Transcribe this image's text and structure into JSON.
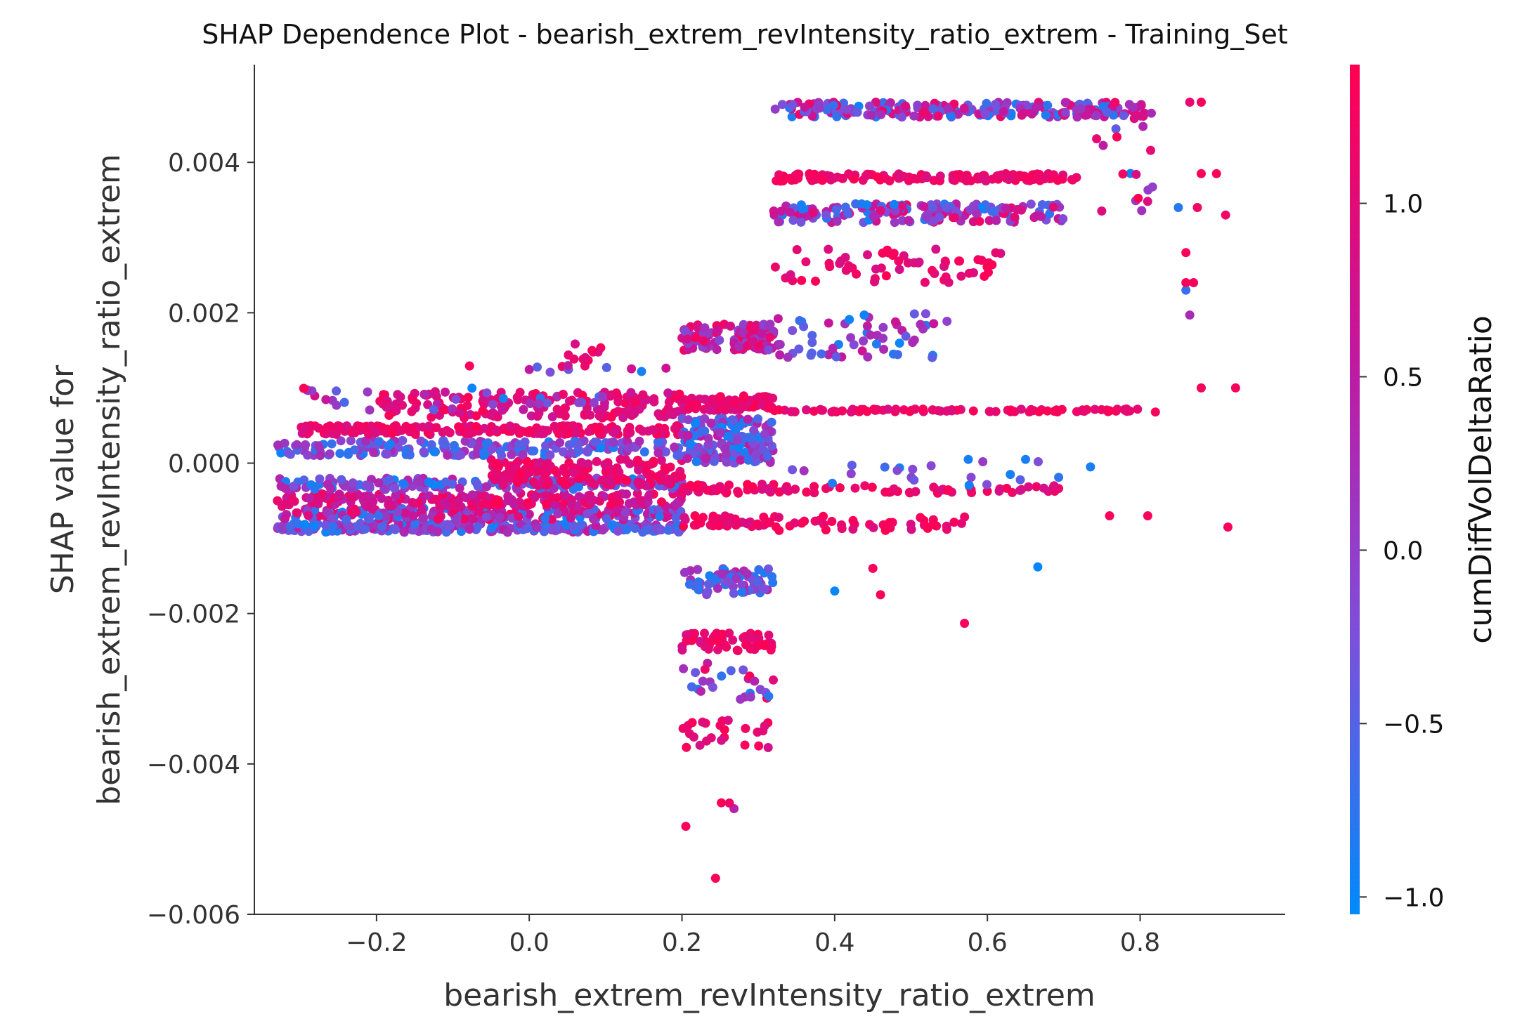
{
  "chart_data": {
    "type": "scatter",
    "title": "SHAP Dependence Plot - bearish_extrem_revIntensity_ratio_extrem - Training_Set",
    "xlabel": "bearish_extrem_revIntensity_ratio_extrem",
    "ylabel_lines": [
      "SHAP value for",
      "bearish_extrem_revIntensity_ratio_extrem"
    ],
    "xlim": [
      -0.36,
      0.99
    ],
    "ylim": [
      -0.006,
      0.0053
    ],
    "xticks": [
      -0.2,
      0.0,
      0.2,
      0.4,
      0.6,
      0.8
    ],
    "xtick_labels": [
      "−0.2",
      "0.0",
      "0.2",
      "0.4",
      "0.6",
      "0.8"
    ],
    "yticks": [
      0.004,
      0.002,
      0.0,
      -0.002,
      -0.004,
      -0.006
    ],
    "ytick_labels": [
      "0.004",
      "0.002",
      "0.000",
      "−0.002",
      "−0.004",
      "−0.006"
    ],
    "colorbar": {
      "label": "cumDiffVolDeltaRatio",
      "range": [
        -1.05,
        1.4
      ],
      "ticks": [
        1.0,
        0.5,
        0.0,
        -0.5,
        -1.0
      ],
      "tick_labels": [
        "1.0",
        "0.5",
        "0.0",
        "−0.5",
        "−1.0"
      ],
      "colormap": [
        "#008afb",
        "#7d4fdb",
        "#c3179f",
        "#ff0052"
      ]
    },
    "grid": false,
    "point_clusters": [
      {
        "x": [
          -0.33,
          0.2
        ],
        "y": [
          -0.00092,
          -0.0008
        ],
        "n": 260,
        "c": [
          -1.0,
          0.6
        ]
      },
      {
        "x": [
          -0.33,
          0.2
        ],
        "y": [
          -0.00075,
          -0.0006
        ],
        "n": 220,
        "c": [
          -1.0,
          1.3
        ]
      },
      {
        "x": [
          -0.33,
          0.2
        ],
        "y": [
          -0.00058,
          -0.0004
        ],
        "n": 200,
        "c": [
          0.4,
          1.4
        ]
      },
      {
        "x": [
          -0.33,
          0.2
        ],
        "y": [
          -0.00035,
          -0.0002
        ],
        "n": 160,
        "c": [
          -1.0,
          0.5
        ]
      },
      {
        "x": [
          -0.05,
          0.2
        ],
        "y": [
          -0.0003,
          5e-05
        ],
        "n": 160,
        "c": [
          0.8,
          1.4
        ]
      },
      {
        "x": [
          -0.33,
          0.2
        ],
        "y": [
          0.0001,
          0.0003
        ],
        "n": 200,
        "c": [
          -1.0,
          0.4
        ]
      },
      {
        "x": [
          -0.3,
          0.2
        ],
        "y": [
          0.00038,
          0.0005
        ],
        "n": 200,
        "c": [
          0.8,
          1.4
        ]
      },
      {
        "x": [
          -0.2,
          0.2
        ],
        "y": [
          0.0006,
          0.00095
        ],
        "n": 160,
        "c": [
          0.6,
          1.4
        ]
      },
      {
        "x": [
          -0.33,
          0.1
        ],
        "y": [
          0.0007,
          0.001
        ],
        "n": 40,
        "c": [
          -1.0,
          1.4
        ]
      },
      {
        "x": [
          0.04,
          0.1
        ],
        "y": [
          0.0012,
          0.0016
        ],
        "n": 12,
        "c": [
          0.8,
          1.4
        ]
      },
      {
        "x": [
          -0.1,
          0.18
        ],
        "y": [
          0.0012,
          0.0013
        ],
        "n": 10,
        "c": [
          -1.0,
          1.4
        ]
      },
      {
        "x": [
          0.2,
          0.32
        ],
        "y": [
          -0.00085,
          -0.0007
        ],
        "n": 40,
        "c": [
          0.8,
          1.4
        ]
      },
      {
        "x": [
          0.2,
          0.32
        ],
        "y": [
          -0.0004,
          -0.00028
        ],
        "n": 40,
        "c": [
          0.8,
          1.4
        ]
      },
      {
        "x": [
          0.2,
          0.32
        ],
        "y": [
          0.0,
          0.0003
        ],
        "n": 100,
        "c": [
          -1.0,
          0.6
        ]
      },
      {
        "x": [
          0.2,
          0.32
        ],
        "y": [
          0.0003,
          0.0006
        ],
        "n": 80,
        "c": [
          -1.0,
          0.6
        ]
      },
      {
        "x": [
          0.2,
          0.32
        ],
        "y": [
          0.0007,
          0.0009
        ],
        "n": 80,
        "c": [
          0.8,
          1.4
        ]
      },
      {
        "x": [
          0.2,
          0.32
        ],
        "y": [
          0.0015,
          0.00185
        ],
        "n": 110,
        "c": [
          -0.2,
          1.3
        ]
      },
      {
        "x": [
          0.2,
          0.32
        ],
        "y": [
          -0.00175,
          -0.0014
        ],
        "n": 70,
        "c": [
          -1.0,
          0.5
        ]
      },
      {
        "x": [
          0.2,
          0.32
        ],
        "y": [
          -0.0025,
          -0.00225
        ],
        "n": 60,
        "c": [
          0.8,
          1.4
        ]
      },
      {
        "x": [
          0.2,
          0.32
        ],
        "y": [
          -0.00315,
          -0.00265
        ],
        "n": 25,
        "c": [
          -1.0,
          1.4
        ]
      },
      {
        "x": [
          0.2,
          0.32
        ],
        "y": [
          -0.0038,
          -0.0034
        ],
        "n": 25,
        "c": [
          0.8,
          1.4
        ]
      },
      {
        "x": [
          0.24,
          0.27
        ],
        "y": [
          -0.00495,
          -0.0045
        ],
        "n": 3,
        "c": [
          0.2,
          1.4
        ]
      },
      {
        "x": [
          0.32,
          0.82
        ],
        "y": [
          0.0046,
          0.0048
        ],
        "n": 220,
        "c": [
          -1.0,
          1.2
        ]
      },
      {
        "x": [
          0.32,
          0.72
        ],
        "y": [
          0.00375,
          0.00385
        ],
        "n": 140,
        "c": [
          0.9,
          1.4
        ]
      },
      {
        "x": [
          0.32,
          0.7
        ],
        "y": [
          0.0032,
          0.00345
        ],
        "n": 180,
        "c": [
          -1.0,
          1.2
        ]
      },
      {
        "x": [
          0.32,
          0.62
        ],
        "y": [
          0.0024,
          0.00285
        ],
        "n": 60,
        "c": [
          0.8,
          1.4
        ]
      },
      {
        "x": [
          0.32,
          0.55
        ],
        "y": [
          0.0014,
          0.002
        ],
        "n": 60,
        "c": [
          -1.0,
          0.8
        ]
      },
      {
        "x": [
          0.32,
          0.8
        ],
        "y": [
          0.00068,
          0.00072
        ],
        "n": 90,
        "c": [
          0.9,
          1.4
        ]
      },
      {
        "x": [
          0.32,
          0.7
        ],
        "y": [
          -0.0004,
          -0.0003
        ],
        "n": 50,
        "c": [
          0.8,
          1.4
        ]
      },
      {
        "x": [
          0.32,
          0.6
        ],
        "y": [
          -0.0009,
          -0.0007
        ],
        "n": 40,
        "c": [
          0.8,
          1.4
        ]
      },
      {
        "x": [
          0.32,
          0.72
        ],
        "y": [
          -0.0003,
          0.0001
        ],
        "n": 20,
        "c": [
          -1.0,
          0.3
        ]
      },
      {
        "x": [
          0.74,
          0.82
        ],
        "y": [
          0.0033,
          0.0048
        ],
        "n": 20,
        "c": [
          -1.0,
          1.4
        ]
      }
    ],
    "points": [
      {
        "x": 0.244,
        "y": -0.00552,
        "c": 1.3
      },
      {
        "x": 0.205,
        "y": -0.00483,
        "c": 1.3
      },
      {
        "x": 0.57,
        "y": -0.00213,
        "c": 1.3
      },
      {
        "x": 0.666,
        "y": -0.00138,
        "c": -1.0
      },
      {
        "x": 0.4,
        "y": -0.0017,
        "c": -1.0
      },
      {
        "x": 0.45,
        "y": -0.0014,
        "c": 1.3
      },
      {
        "x": 0.46,
        "y": -0.00175,
        "c": 1.3
      },
      {
        "x": 0.88,
        "y": 0.001,
        "c": 1.3
      },
      {
        "x": 0.925,
        "y": 0.001,
        "c": 1.3
      },
      {
        "x": 0.915,
        "y": -0.00085,
        "c": 1.3
      },
      {
        "x": 0.912,
        "y": 0.0033,
        "c": 1.2
      },
      {
        "x": 0.86,
        "y": 0.0023,
        "c": -0.7
      },
      {
        "x": 0.865,
        "y": 0.00197,
        "c": 0.3
      },
      {
        "x": 0.86,
        "y": 0.0028,
        "c": 1.3
      },
      {
        "x": 0.85,
        "y": 0.0034,
        "c": -0.8
      },
      {
        "x": 0.875,
        "y": 0.0034,
        "c": 1.2
      },
      {
        "x": 0.88,
        "y": 0.00385,
        "c": 1.3
      },
      {
        "x": 0.9,
        "y": 0.00385,
        "c": 1.3
      },
      {
        "x": 0.865,
        "y": 0.0048,
        "c": 1.1
      },
      {
        "x": 0.88,
        "y": 0.0048,
        "c": 1.3
      },
      {
        "x": 0.86,
        "y": 0.0024,
        "c": 1.3
      },
      {
        "x": 0.87,
        "y": 0.0024,
        "c": 1.3
      },
      {
        "x": 0.735,
        "y": -5e-05,
        "c": -0.9
      },
      {
        "x": 0.65,
        "y": 5e-05,
        "c": -0.9
      },
      {
        "x": 0.63,
        "y": -0.00015,
        "c": -0.9
      },
      {
        "x": 0.575,
        "y": 5e-05,
        "c": -0.9
      },
      {
        "x": 0.76,
        "y": -0.0007,
        "c": 1.3
      },
      {
        "x": 0.81,
        "y": -0.0007,
        "c": 1.3
      },
      {
        "x": 0.82,
        "y": 0.00068,
        "c": 1.3
      }
    ]
  }
}
